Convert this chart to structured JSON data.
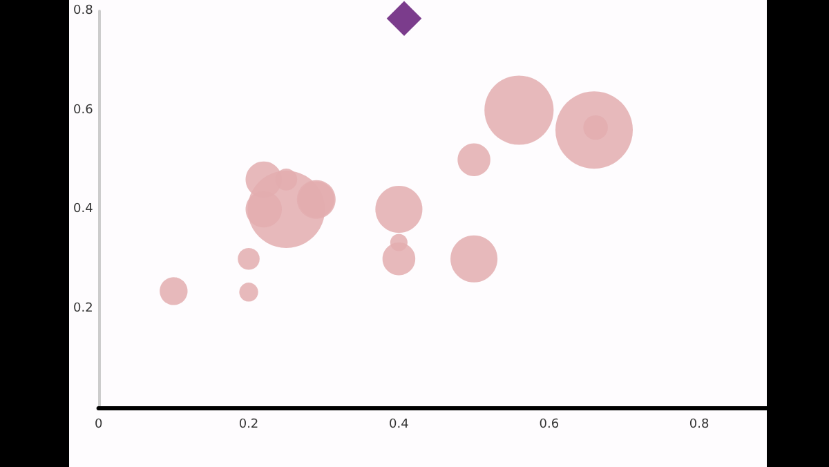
{
  "chart_data": {
    "type": "bubble",
    "xlim": [
      0,
      0.89
    ],
    "xticks": [
      0,
      0.2,
      0.4,
      0.6,
      0.8
    ],
    "ylim": [
      0,
      0.8
    ],
    "yticks": [
      0.2,
      0.4,
      0.6,
      0.8
    ],
    "grid": false,
    "series": [
      {
        "color": "#e3adaf",
        "x": [
          0.1,
          0.2,
          0.2,
          0.25,
          0.22,
          0.22,
          0.25,
          0.29,
          0.29,
          0.4,
          0.4,
          0.4,
          0.5,
          0.5,
          0.56,
          0.66,
          0.662
        ],
        "values": [
          0.235,
          0.3,
          0.233,
          0.4,
          0.46,
          0.4,
          0.46,
          0.42,
          0.42,
          0.4,
          0.333,
          0.3,
          0.5,
          0.3,
          0.6,
          0.56,
          0.565
        ],
        "sizes": [
          0.13,
          0.08,
          0.06,
          1,
          0.22,
          0.22,
          0.08,
          0.22,
          0.25,
          0.37,
          0.05,
          0.18,
          0.18,
          0.37,
          0.8,
          1,
          0.1
        ]
      },
      {
        "type": "scatter",
        "marker": "diamond",
        "color": "#7b3c8c",
        "x": [
          0.407
        ],
        "values": [
          0.785
        ],
        "sizes": [
          0.13
        ]
      }
    ]
  }
}
